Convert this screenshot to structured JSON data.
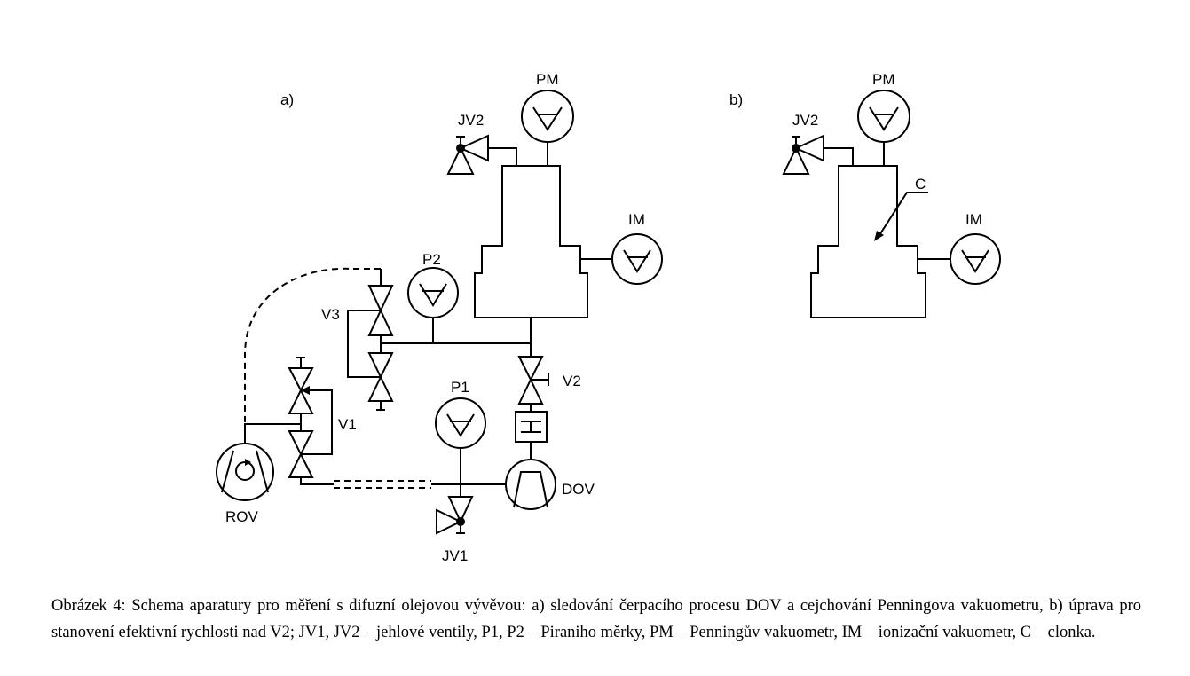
{
  "panels": {
    "a": {
      "label": "a)",
      "labels": {
        "PM": "PM",
        "JV2": "JV2",
        "IM": "IM",
        "P2": "P2",
        "V3": "V3",
        "V2": "V2",
        "P1": "P1",
        "V1": "V1",
        "DOV": "DOV",
        "ROV": "ROV",
        "JV1": "JV1"
      }
    },
    "b": {
      "label": "b)",
      "labels": {
        "PM": "PM",
        "JV2": "JV2",
        "C": "C",
        "IM": "IM"
      }
    }
  },
  "caption": "Obrázek 4: Schema aparatury pro měření s difuzní olejovou vývěvou: a) sledování čerpacího procesu DOV a cejchování Penningova vakuometru, b) úprava pro stanovení efektivní rychlosti nad V2; JV1, JV2 – jehlové ventily, P1, P2 – Piraniho měrky, PM – Penningův vakuometr, IM – ionizační vakuometr, C – clonka."
}
